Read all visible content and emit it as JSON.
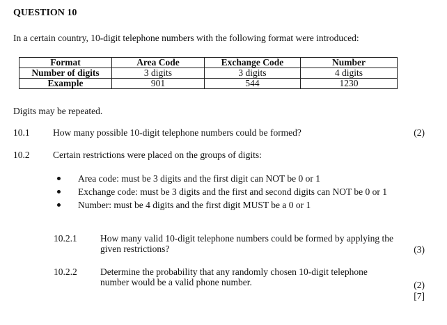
{
  "question_title": "QUESTION 10",
  "intro": "In a certain country, 10-digit telephone numbers with the following format were introduced:",
  "table": {
    "header": [
      "Format",
      "Area Code",
      "Exchange Code",
      "Number"
    ],
    "rows": [
      [
        "Number of digits",
        "3 digits",
        "3 digits",
        "4 digits"
      ],
      [
        "Example",
        "901",
        "544",
        "1230"
      ]
    ]
  },
  "note": "Digits may be repeated.",
  "q10_1": {
    "number": "10.1",
    "text": "How many possible 10-digit telephone numbers could be formed?",
    "marks": "(2)"
  },
  "q10_2": {
    "number": "10.2",
    "text": "Certain restrictions were placed on the groups of digits:",
    "bullets": [
      "Area code: must be 3 digits and the first digit can NOT be 0 or 1",
      "Exchange code: must be 3 digits and the first and second digits can NOT be 0 or 1",
      "Number: must be 4 digits and the first digit MUST be a 0 or 1"
    ],
    "sub1": {
      "number": "10.2.1",
      "text": "How many valid 10-digit telephone numbers could be formed by applying the given restrictions?",
      "marks": "(3)"
    },
    "sub2": {
      "number": "10.2.2",
      "text": "Determine the probability that any randomly chosen 10-digit telephone number would be a valid phone number.",
      "marks": "(2)"
    }
  },
  "total_marks": "[7]"
}
